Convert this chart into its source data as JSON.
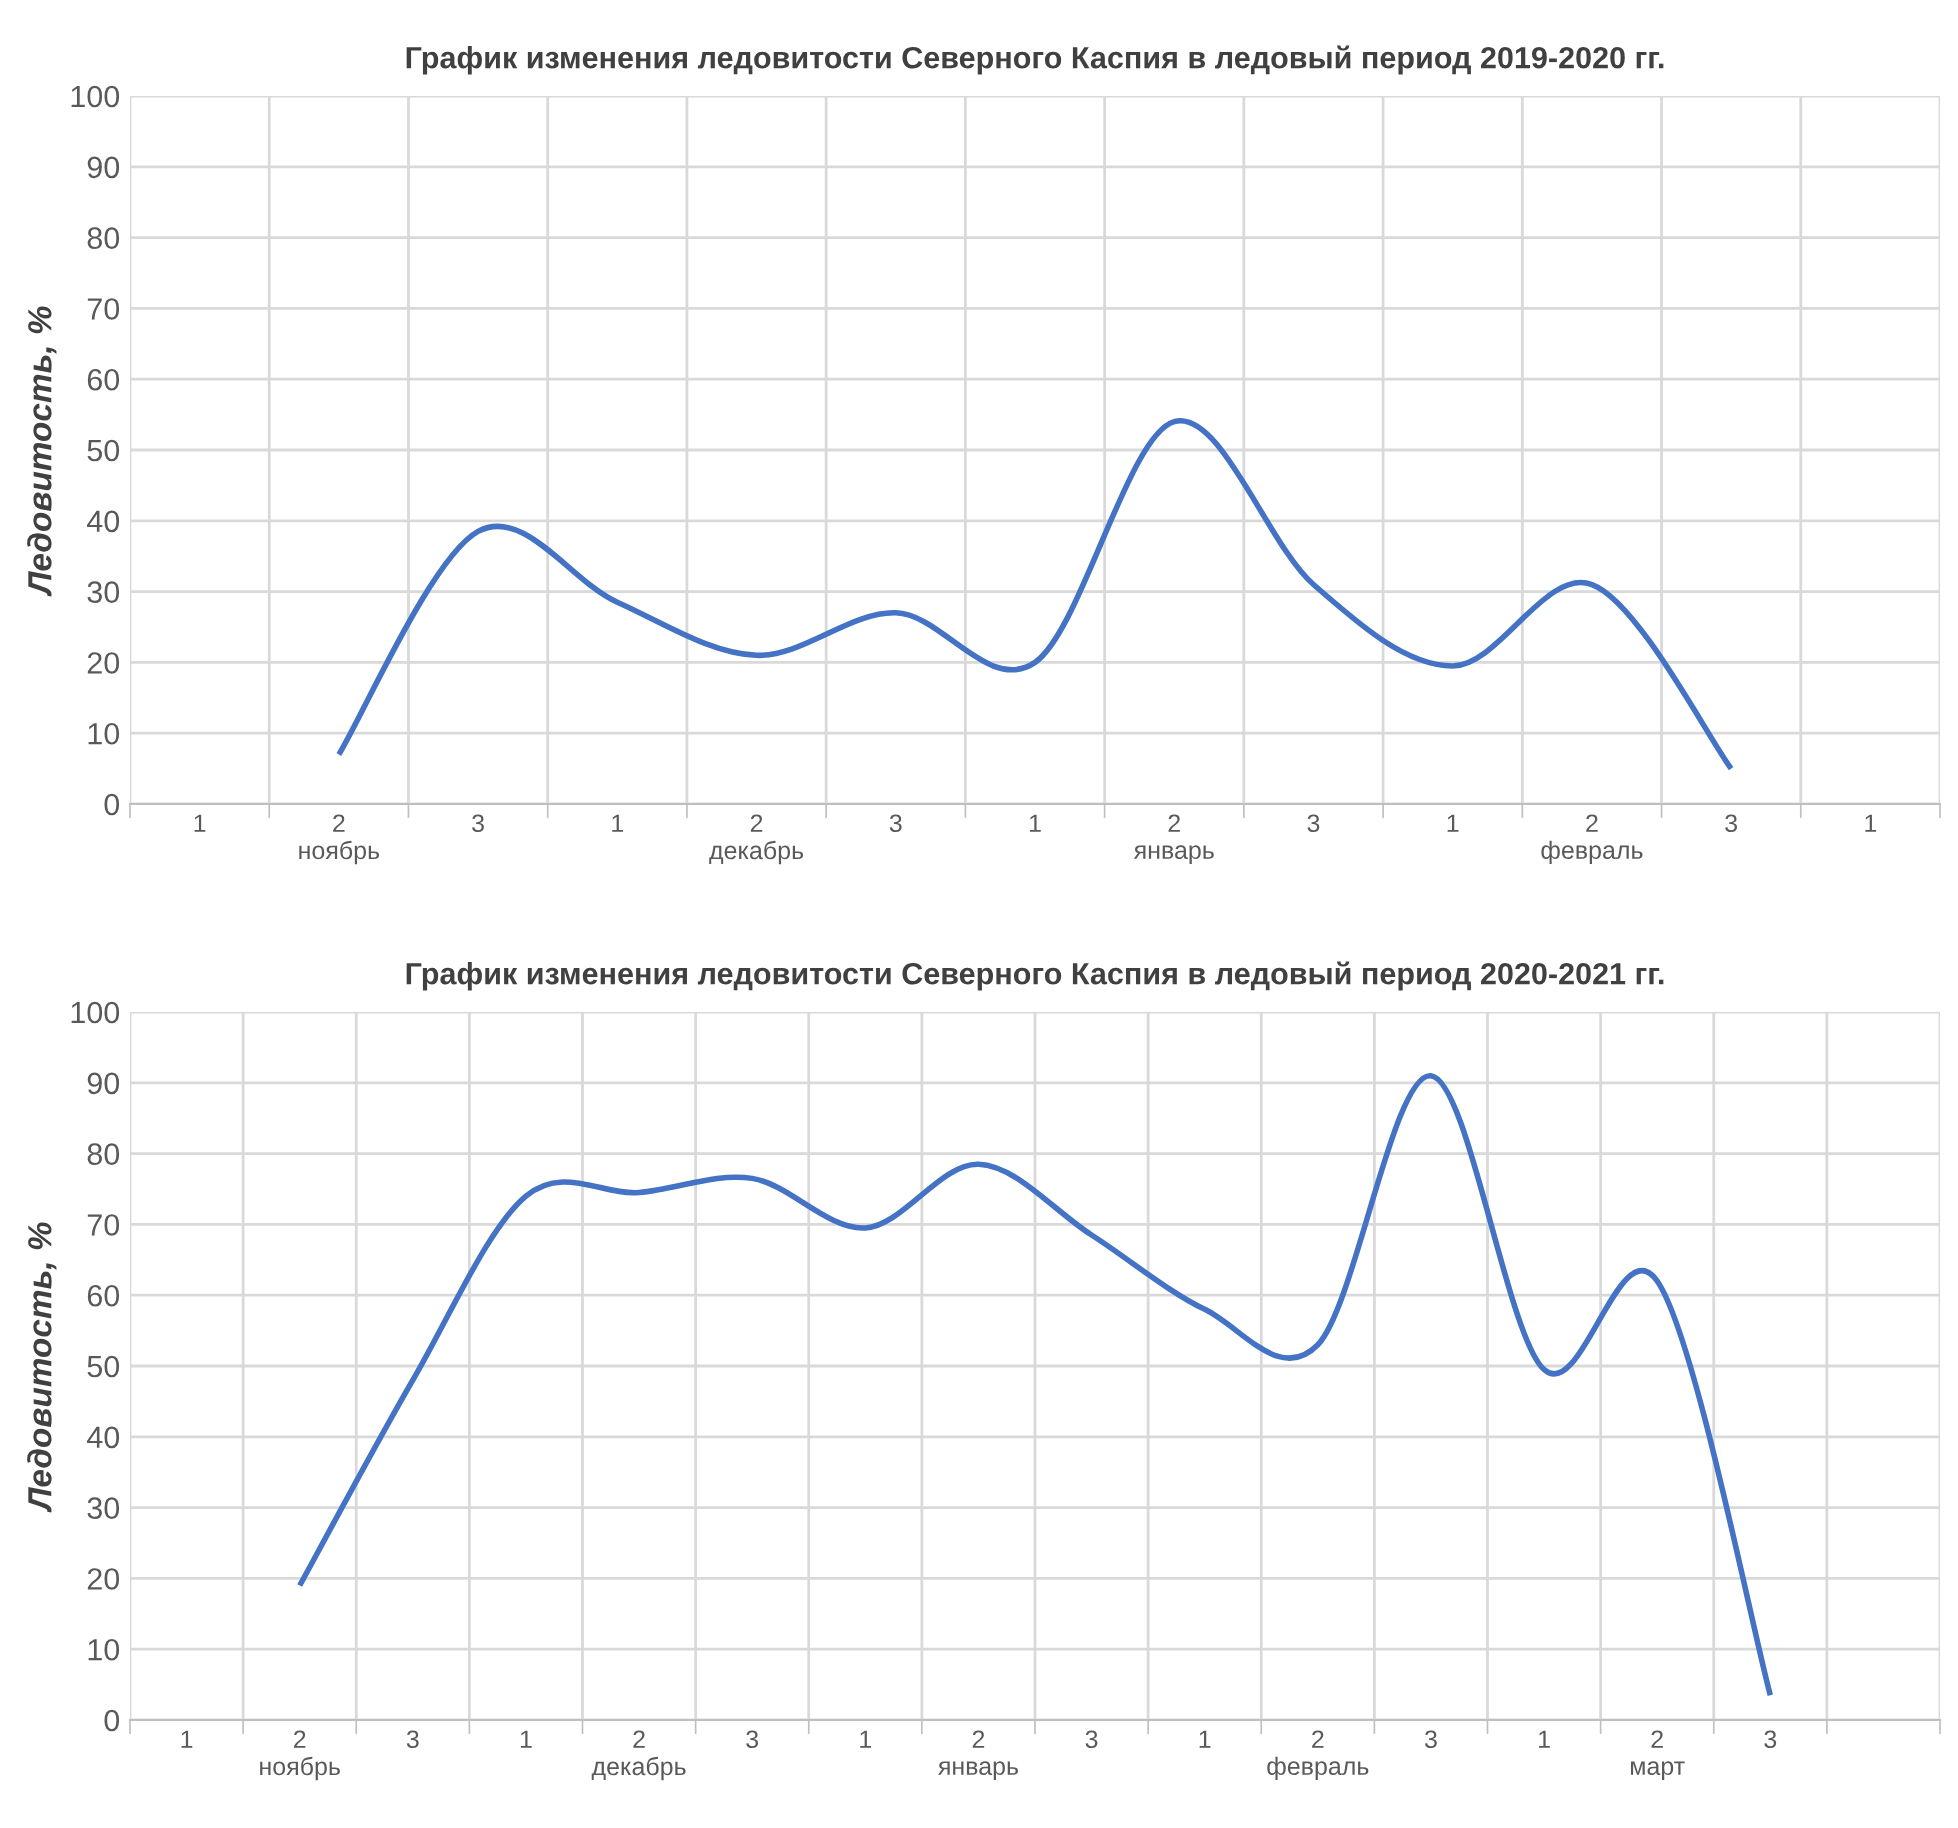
{
  "chart_data": [
    {
      "type": "line",
      "title": "График изменения ледовитости Северного Каспия в ледовый период 2019-2020 гг.",
      "ylabel": "Ледовитость, %",
      "categories": [
        "1",
        "2\nноябрь",
        "3",
        "1",
        "2\nдекабрь",
        "3",
        "1",
        "2\nянварь",
        "3",
        "1",
        "2\nфевраль",
        "3",
        "1"
      ],
      "series": [
        {
          "color": "#4472c4",
          "values": [
            null,
            7,
            38.5,
            28.5,
            21,
            27,
            20,
            54,
            31,
            19.5,
            31,
            5,
            null
          ]
        }
      ],
      "ylim": [
        0,
        100
      ],
      "yticks": [
        0,
        10,
        20,
        30,
        40,
        50,
        60,
        70,
        80,
        90,
        100
      ],
      "grid": true,
      "marker": "none",
      "line_style": "solid"
    },
    {
      "type": "line",
      "title": "График изменения ледовитости Северного Каспия в ледовый период 2020-2021 гг.",
      "ylabel": "Ледовитость, %",
      "categories": [
        "1",
        "2\nноябрь",
        "3",
        "1",
        "2\nдекабрь",
        "3",
        "1",
        "2\nянварь",
        "3",
        "1",
        "2\nфевраль",
        "3",
        "1",
        "2\nмарт",
        "3",
        null
      ],
      "series": [
        {
          "color": "#4472c4",
          "values": [
            null,
            19,
            48,
            74,
            74.5,
            76.5,
            69.5,
            78.5,
            68.5,
            58,
            53,
            91,
            49.5,
            62,
            3.5,
            null
          ]
        }
      ],
      "ylim": [
        0,
        100
      ],
      "yticks": [
        0,
        10,
        20,
        30,
        40,
        50,
        60,
        70,
        80,
        90,
        100
      ],
      "grid": true,
      "marker": "none",
      "line_style": "solid"
    }
  ]
}
